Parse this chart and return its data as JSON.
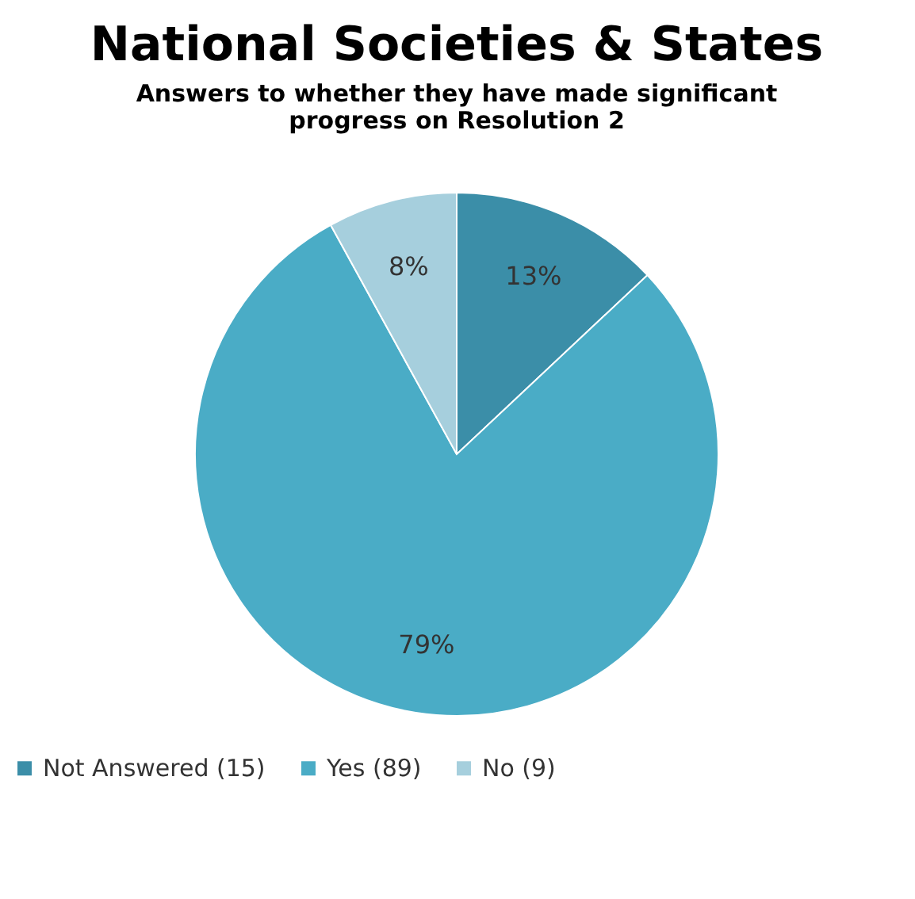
{
  "chart_data": {
    "type": "pie",
    "title": "National Societies & States",
    "subtitle": "Answers to whether they have made significant progress on Resolution 2",
    "categories": [
      "Not Answered (15)",
      "Yes (89)",
      "No (9)"
    ],
    "values": [
      13,
      79,
      8
    ],
    "value_labels": [
      "13%",
      "79%",
      "8%"
    ],
    "colors": [
      "#3b8ea8",
      "#4aacc6",
      "#a6cfdd"
    ],
    "legend": "bottom"
  }
}
